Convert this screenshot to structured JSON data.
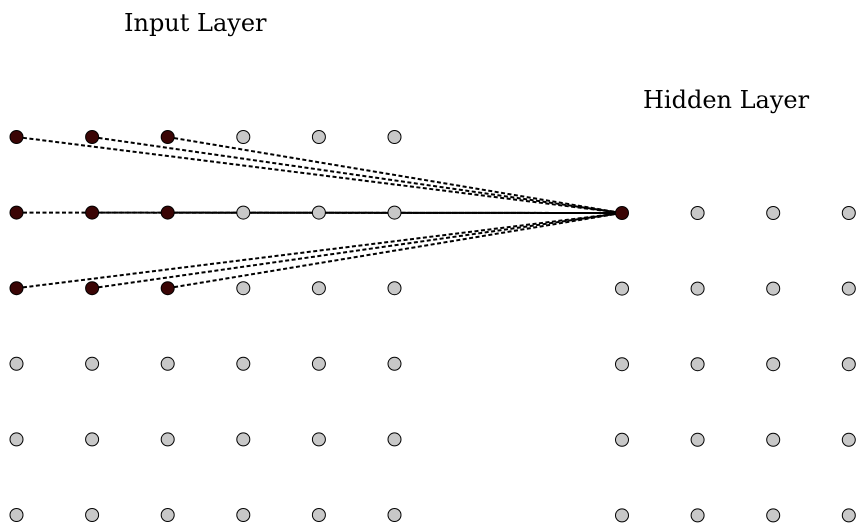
{
  "labels": {
    "input_layer": "Input Layer",
    "hidden_layer": "Hidden Layer"
  },
  "colors": {
    "neuron_inactive": "#c8c8c8",
    "neuron_active": "#3a0505",
    "stroke": "#000000"
  },
  "input_layer": {
    "rows": 6,
    "cols": 6,
    "active": [
      [
        0,
        0
      ],
      [
        0,
        1
      ],
      [
        0,
        2
      ],
      [
        1,
        0
      ],
      [
        1,
        1
      ],
      [
        1,
        2
      ],
      [
        2,
        0
      ],
      [
        2,
        1
      ],
      [
        2,
        2
      ]
    ]
  },
  "hidden_layer": {
    "rows": 5,
    "cols": 4,
    "active": [
      [
        0,
        0
      ]
    ]
  },
  "connections": [
    {
      "from": [
        0,
        0
      ],
      "to": [
        0,
        0
      ]
    },
    {
      "from": [
        0,
        1
      ],
      "to": [
        0,
        0
      ]
    },
    {
      "from": [
        0,
        2
      ],
      "to": [
        0,
        0
      ]
    },
    {
      "from": [
        1,
        0
      ],
      "to": [
        0,
        0
      ]
    },
    {
      "from": [
        1,
        1
      ],
      "to": [
        0,
        0
      ]
    },
    {
      "from": [
        1,
        2
      ],
      "to": [
        0,
        0
      ]
    },
    {
      "from": [
        2,
        0
      ],
      "to": [
        0,
        0
      ]
    },
    {
      "from": [
        2,
        1
      ],
      "to": [
        0,
        0
      ]
    },
    {
      "from": [
        2,
        2
      ],
      "to": [
        0,
        0
      ]
    }
  ]
}
